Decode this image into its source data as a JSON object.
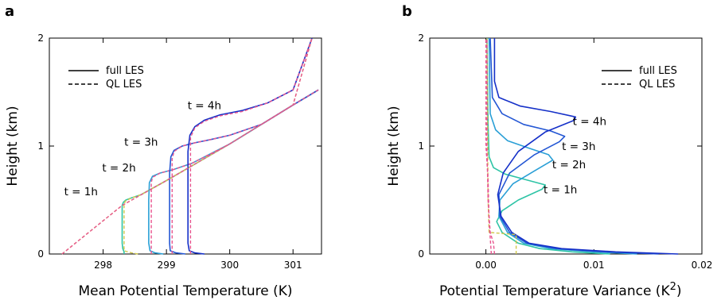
{
  "panels": {
    "a": "a",
    "b": "b"
  },
  "chart_data": [
    {
      "type": "line",
      "panel": "a",
      "xlabel": "Mean Potential Temperature (K)",
      "ylabel": "Height (km)",
      "xlim": [
        297.15,
        301.45
      ],
      "ylim": [
        0,
        2
      ],
      "xticks": [
        298,
        299,
        300,
        301
      ],
      "xtick_labels": [
        "298",
        "299",
        "300",
        "301"
      ],
      "yticks": [
        0,
        1,
        2
      ],
      "ytick_labels": [
        "0",
        "1",
        "2"
      ],
      "legend": {
        "position": "top-left",
        "entries": [
          {
            "label": "full LES",
            "dash": "solid"
          },
          {
            "label": "QL LES",
            "dash": "dashed"
          }
        ]
      },
      "annotations": [
        {
          "text": "t = 1h",
          "x": 297.65,
          "y": 0.58
        },
        {
          "text": "t = 2h",
          "x": 298.25,
          "y": 0.8
        },
        {
          "text": "t = 3h",
          "x": 298.6,
          "y": 1.04
        },
        {
          "text": "t = 4h",
          "x": 299.6,
          "y": 1.38
        }
      ],
      "series": [
        {
          "color": "#2ec4a6",
          "dash": "solid",
          "points": [
            [
              298.33,
              0.0
            ],
            [
              298.33,
              0.02
            ],
            [
              298.31,
              0.05
            ],
            [
              298.3,
              0.1
            ],
            [
              298.3,
              0.3
            ],
            [
              298.3,
              0.45
            ],
            [
              298.32,
              0.48
            ],
            [
              298.36,
              0.5
            ],
            [
              298.45,
              0.52
            ],
            [
              298.6,
              0.55
            ],
            [
              299.0,
              0.68
            ],
            [
              299.5,
              0.85
            ],
            [
              300.0,
              1.02
            ],
            [
              300.5,
              1.2
            ],
            [
              301.0,
              1.38
            ],
            [
              301.4,
              1.52
            ]
          ]
        },
        {
          "color": "#d0c84a",
          "dash": "dashed",
          "points": [
            [
              298.55,
              0.0
            ],
            [
              298.45,
              0.01
            ],
            [
              298.33,
              0.03
            ],
            [
              298.33,
              0.45
            ],
            [
              298.35,
              0.49
            ],
            [
              298.45,
              0.52
            ],
            [
              298.6,
              0.55
            ],
            [
              299.0,
              0.68
            ],
            [
              299.5,
              0.85
            ],
            [
              300.0,
              1.02
            ],
            [
              300.5,
              1.2
            ],
            [
              301.0,
              1.38
            ],
            [
              301.4,
              1.52
            ]
          ]
        },
        {
          "color": "#2a9fd6",
          "dash": "solid",
          "points": [
            [
              298.95,
              0.0
            ],
            [
              298.82,
              0.01
            ],
            [
              298.74,
              0.03
            ],
            [
              298.72,
              0.1
            ],
            [
              298.72,
              0.5
            ],
            [
              298.73,
              0.66
            ],
            [
              298.78,
              0.72
            ],
            [
              298.9,
              0.75
            ],
            [
              299.1,
              0.78
            ],
            [
              299.4,
              0.84
            ],
            [
              300.0,
              1.02
            ],
            [
              300.5,
              1.2
            ],
            [
              301.0,
              1.38
            ],
            [
              301.4,
              1.52
            ]
          ]
        },
        {
          "color": "#e8558f",
          "dash": "dashed",
          "points": [
            [
              298.76,
              0.0
            ],
            [
              298.76,
              0.66
            ],
            [
              298.78,
              0.71
            ],
            [
              298.9,
              0.75
            ],
            [
              299.1,
              0.78
            ],
            [
              299.4,
              0.84
            ],
            [
              300.0,
              1.02
            ],
            [
              300.5,
              1.2
            ],
            [
              301.0,
              1.38
            ],
            [
              301.4,
              1.52
            ]
          ]
        },
        {
          "color": "#2457d4",
          "dash": "solid",
          "points": [
            [
              299.3,
              0.0
            ],
            [
              299.15,
              0.01
            ],
            [
              299.06,
              0.03
            ],
            [
              299.05,
              0.1
            ],
            [
              299.05,
              0.75
            ],
            [
              299.07,
              0.9
            ],
            [
              299.12,
              0.96
            ],
            [
              299.25,
              1.0
            ],
            [
              299.45,
              1.03
            ],
            [
              299.7,
              1.06
            ],
            [
              300.0,
              1.1
            ],
            [
              300.5,
              1.2
            ],
            [
              301.0,
              1.38
            ],
            [
              301.4,
              1.52
            ]
          ]
        },
        {
          "color": "#e8558f",
          "dash": "dashed",
          "points": [
            [
              299.09,
              0.0
            ],
            [
              299.09,
              0.88
            ],
            [
              299.12,
              0.95
            ],
            [
              299.25,
              1.0
            ],
            [
              299.45,
              1.03
            ],
            [
              299.7,
              1.06
            ],
            [
              300.0,
              1.1
            ],
            [
              300.5,
              1.2
            ],
            [
              301.0,
              1.38
            ],
            [
              301.4,
              1.52
            ]
          ]
        },
        {
          "color": "#1530c8",
          "dash": "solid",
          "points": [
            [
              299.6,
              0.0
            ],
            [
              299.45,
              0.01
            ],
            [
              299.36,
              0.03
            ],
            [
              299.34,
              0.1
            ],
            [
              299.34,
              0.95
            ],
            [
              299.37,
              1.1
            ],
            [
              299.45,
              1.18
            ],
            [
              299.6,
              1.24
            ],
            [
              299.85,
              1.29
            ],
            [
              300.2,
              1.33
            ],
            [
              300.6,
              1.4
            ],
            [
              301.0,
              1.52
            ],
            [
              301.3,
              2.0
            ]
          ]
        },
        {
          "color": "#e8558f",
          "dash": "dashed",
          "points": [
            [
              299.38,
              0.0
            ],
            [
              299.38,
              1.08
            ],
            [
              299.45,
              1.17
            ],
            [
              299.6,
              1.23
            ],
            [
              299.85,
              1.28
            ],
            [
              300.2,
              1.32
            ],
            [
              300.6,
              1.4
            ],
            [
              301.0,
              1.52
            ],
            [
              301.3,
              2.0
            ]
          ]
        },
        {
          "color": "#d0c84a",
          "dash": "dashed",
          "points": [
            [
              297.35,
              0.0
            ],
            [
              298.3,
              0.45
            ],
            [
              299.0,
              0.68
            ],
            [
              299.5,
              0.85
            ],
            [
              300.0,
              1.02
            ],
            [
              300.5,
              1.2
            ],
            [
              301.0,
              1.38
            ],
            [
              301.3,
              2.0
            ]
          ]
        },
        {
          "color": "#e8558f",
          "dash": "dashed",
          "points": [
            [
              297.35,
              0.0
            ],
            [
              298.3,
              0.45
            ],
            [
              299.0,
              0.68
            ],
            [
              299.5,
              0.85
            ],
            [
              300.0,
              1.02
            ],
            [
              300.5,
              1.2
            ],
            [
              301.0,
              1.38
            ],
            [
              301.3,
              2.0
            ]
          ]
        }
      ]
    },
    {
      "type": "line",
      "panel": "b",
      "xlabel": "Potential Temperature Variance (K",
      "xlabel_sup": "2",
      "xlabel_close": ")",
      "ylabel": "Height (km)",
      "xlim": [
        -0.0052,
        0.02
      ],
      "ylim": [
        0,
        2
      ],
      "xticks": [
        0,
        0.01,
        0.02
      ],
      "xtick_labels": [
        "0.00",
        "0.01",
        "0.02"
      ],
      "yticks": [
        0,
        1,
        2
      ],
      "ytick_labels": [
        "0",
        "1",
        "2"
      ],
      "legend": {
        "position": "top-right",
        "entries": [
          {
            "label": "full LES",
            "dash": "solid"
          },
          {
            "label": "QL LES",
            "dash": "dashed"
          }
        ]
      },
      "annotations": [
        {
          "text": "t = 1h",
          "x": 0.0069,
          "y": 0.6
        },
        {
          "text": "t = 2h",
          "x": 0.0077,
          "y": 0.83
        },
        {
          "text": "t = 3h",
          "x": 0.0086,
          "y": 1.0
        },
        {
          "text": "t = 4h",
          "x": 0.0096,
          "y": 1.23
        }
      ],
      "series": [
        {
          "color": "#2ec4a6",
          "dash": "solid",
          "points": [
            [
              0.0115,
              0.0
            ],
            [
              0.008,
              0.02
            ],
            [
              0.005,
              0.05
            ],
            [
              0.003,
              0.1
            ],
            [
              0.0015,
              0.2
            ],
            [
              0.001,
              0.3
            ],
            [
              0.0015,
              0.4
            ],
            [
              0.003,
              0.5
            ],
            [
              0.0052,
              0.6
            ],
            [
              0.0055,
              0.64
            ],
            [
              0.004,
              0.68
            ],
            [
              0.0018,
              0.74
            ],
            [
              0.0007,
              0.8
            ],
            [
              0.0003,
              0.9
            ],
            [
              0.0002,
              1.2
            ],
            [
              0.0001,
              2.0
            ]
          ]
        },
        {
          "color": "#2a9fd6",
          "dash": "solid",
          "points": [
            [
              0.014,
              0.0
            ],
            [
              0.01,
              0.02
            ],
            [
              0.006,
              0.05
            ],
            [
              0.0035,
              0.1
            ],
            [
              0.002,
              0.2
            ],
            [
              0.0012,
              0.35
            ],
            [
              0.0013,
              0.5
            ],
            [
              0.0025,
              0.65
            ],
            [
              0.0045,
              0.77
            ],
            [
              0.0062,
              0.87
            ],
            [
              0.0058,
              0.92
            ],
            [
              0.004,
              0.98
            ],
            [
              0.002,
              1.05
            ],
            [
              0.0009,
              1.15
            ],
            [
              0.0004,
              1.3
            ],
            [
              0.0003,
              2.0
            ]
          ]
        },
        {
          "color": "#2457d4",
          "dash": "solid",
          "points": [
            [
              0.016,
              0.0
            ],
            [
              0.011,
              0.02
            ],
            [
              0.0065,
              0.05
            ],
            [
              0.0038,
              0.1
            ],
            [
              0.0022,
              0.2
            ],
            [
              0.0013,
              0.35
            ],
            [
              0.0012,
              0.55
            ],
            [
              0.0022,
              0.75
            ],
            [
              0.0045,
              0.92
            ],
            [
              0.0068,
              1.04
            ],
            [
              0.0073,
              1.09
            ],
            [
              0.006,
              1.14
            ],
            [
              0.0035,
              1.2
            ],
            [
              0.0015,
              1.3
            ],
            [
              0.0006,
              1.45
            ],
            [
              0.0004,
              2.0
            ]
          ]
        },
        {
          "color": "#1530c8",
          "dash": "solid",
          "points": [
            [
              0.0178,
              0.0
            ],
            [
              0.012,
              0.02
            ],
            [
              0.007,
              0.05
            ],
            [
              0.004,
              0.1
            ],
            [
              0.0024,
              0.2
            ],
            [
              0.0014,
              0.35
            ],
            [
              0.0011,
              0.55
            ],
            [
              0.0016,
              0.75
            ],
            [
              0.003,
              0.95
            ],
            [
              0.0055,
              1.13
            ],
            [
              0.0082,
              1.24
            ],
            [
              0.0083,
              1.27
            ],
            [
              0.006,
              1.32
            ],
            [
              0.0032,
              1.37
            ],
            [
              0.0012,
              1.45
            ],
            [
              0.0008,
              1.6
            ],
            [
              0.0008,
              2.0
            ]
          ]
        },
        {
          "color": "#d0c84a",
          "dash": "dashed",
          "points": [
            [
              0.0028,
              0.0
            ],
            [
              0.0028,
              0.18
            ],
            [
              0.0003,
              0.2
            ],
            [
              0.0002,
              0.5
            ],
            [
              0.0001,
              2.0
            ]
          ]
        },
        {
          "color": "#e8558f",
          "dash": "dashed",
          "points": [
            [
              0.0008,
              0.0
            ],
            [
              0.0007,
              0.1
            ],
            [
              0.0004,
              0.2
            ],
            [
              0.0002,
              0.5
            ],
            [
              0.0001,
              1.0
            ],
            [
              0.0001,
              2.0
            ]
          ]
        },
        {
          "color": "#e8558f",
          "dash": "dashed",
          "points": [
            [
              0.0005,
              0.0
            ],
            [
              0.0003,
              0.3
            ],
            [
              0.0002,
              0.7
            ],
            [
              0.0,
              1.0
            ],
            [
              0.0,
              2.0
            ]
          ]
        }
      ]
    }
  ]
}
